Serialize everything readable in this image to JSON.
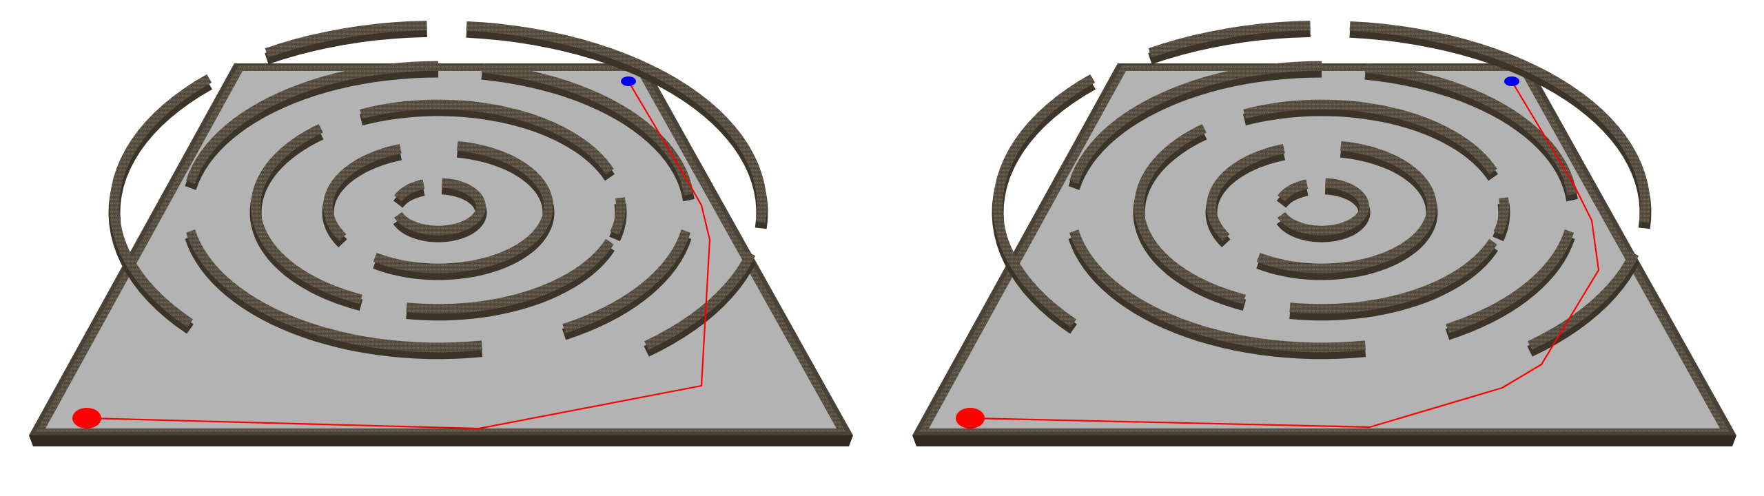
{
  "scene": {
    "background": "#ffffff",
    "board_color": "#b3b3b3",
    "wall_top_color": "#5f5647",
    "wall_side_color": "#3c3428",
    "path_color": "#ff0000",
    "start_color": "#ff0000",
    "goal_color": "#0000ee"
  },
  "panels": [
    {
      "name": "left-maze-view",
      "path_variant": "path-a"
    },
    {
      "name": "right-maze-view",
      "path_variant": "path-b"
    }
  ]
}
